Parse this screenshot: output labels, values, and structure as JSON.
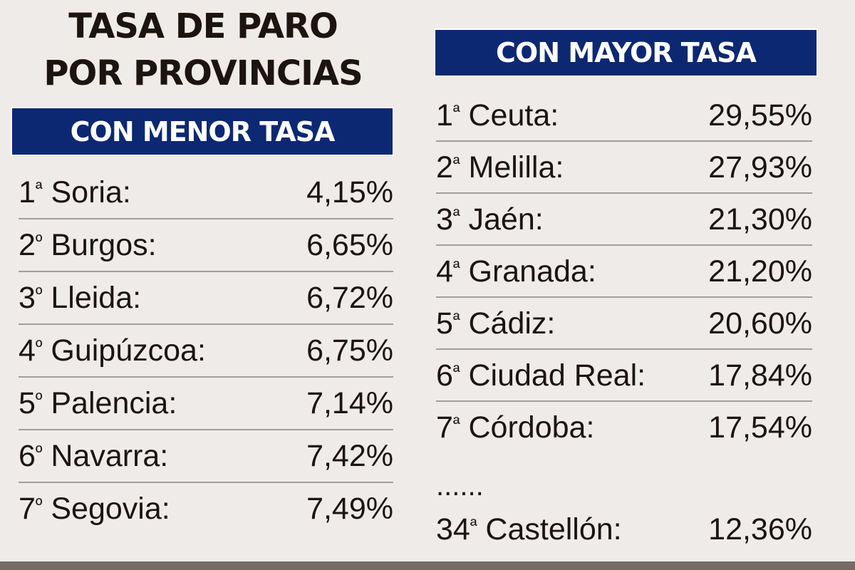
{
  "title": {
    "line1": "TASA DE PARO",
    "line2": "POR PROVINCIAS"
  },
  "lowest": {
    "header": "CON MENOR TASA",
    "rows": [
      {
        "rank": "1",
        "ordinal": "ª",
        "province": "Soria:",
        "rate": "4,15%"
      },
      {
        "rank": "2",
        "ordinal": "º",
        "province": "Burgos:",
        "rate": "6,65%"
      },
      {
        "rank": "3",
        "ordinal": "º",
        "province": "Lleida:",
        "rate": "6,72%"
      },
      {
        "rank": "4",
        "ordinal": "º",
        "province": "Guipúzcoa:",
        "rate": "6,75%"
      },
      {
        "rank": "5",
        "ordinal": "º",
        "province": "Palencia:",
        "rate": "7,14%"
      },
      {
        "rank": "6",
        "ordinal": "º",
        "province": "Navarra:",
        "rate": "7,42%"
      },
      {
        "rank": "7",
        "ordinal": "º",
        "province": "Segovia:",
        "rate": "7,49%"
      }
    ]
  },
  "highest": {
    "header": "CON MAYOR TASA",
    "rows": [
      {
        "rank": "1",
        "ordinal": "ª",
        "province": "Ceuta:",
        "rate": "29,55%"
      },
      {
        "rank": "2",
        "ordinal": "ª",
        "province": "Melilla:",
        "rate": "27,93%"
      },
      {
        "rank": "3",
        "ordinal": "ª",
        "province": "Jaén:",
        "rate": "21,30%"
      },
      {
        "rank": "4",
        "ordinal": "ª",
        "province": "Granada:",
        "rate": "21,20%"
      },
      {
        "rank": "5",
        "ordinal": "ª",
        "province": "Cádiz:",
        "rate": "20,60%"
      },
      {
        "rank": "6",
        "ordinal": "ª",
        "province": "Ciudad Real:",
        "rate": "17,84%"
      },
      {
        "rank": "7",
        "ordinal": "ª",
        "province": "Córdoba:",
        "rate": "17,54%"
      }
    ],
    "ellipsis": "......",
    "extra": {
      "rank": "34",
      "ordinal": "ª",
      "province": "Castellón:",
      "rate": "12,36%"
    }
  },
  "colors": {
    "background": "#eeebe9",
    "banner": "#0d2872",
    "banner_text": "#ffffff",
    "text": "#1a1512",
    "divider": "#a29e9b",
    "bottom_bar": "#766a65"
  }
}
